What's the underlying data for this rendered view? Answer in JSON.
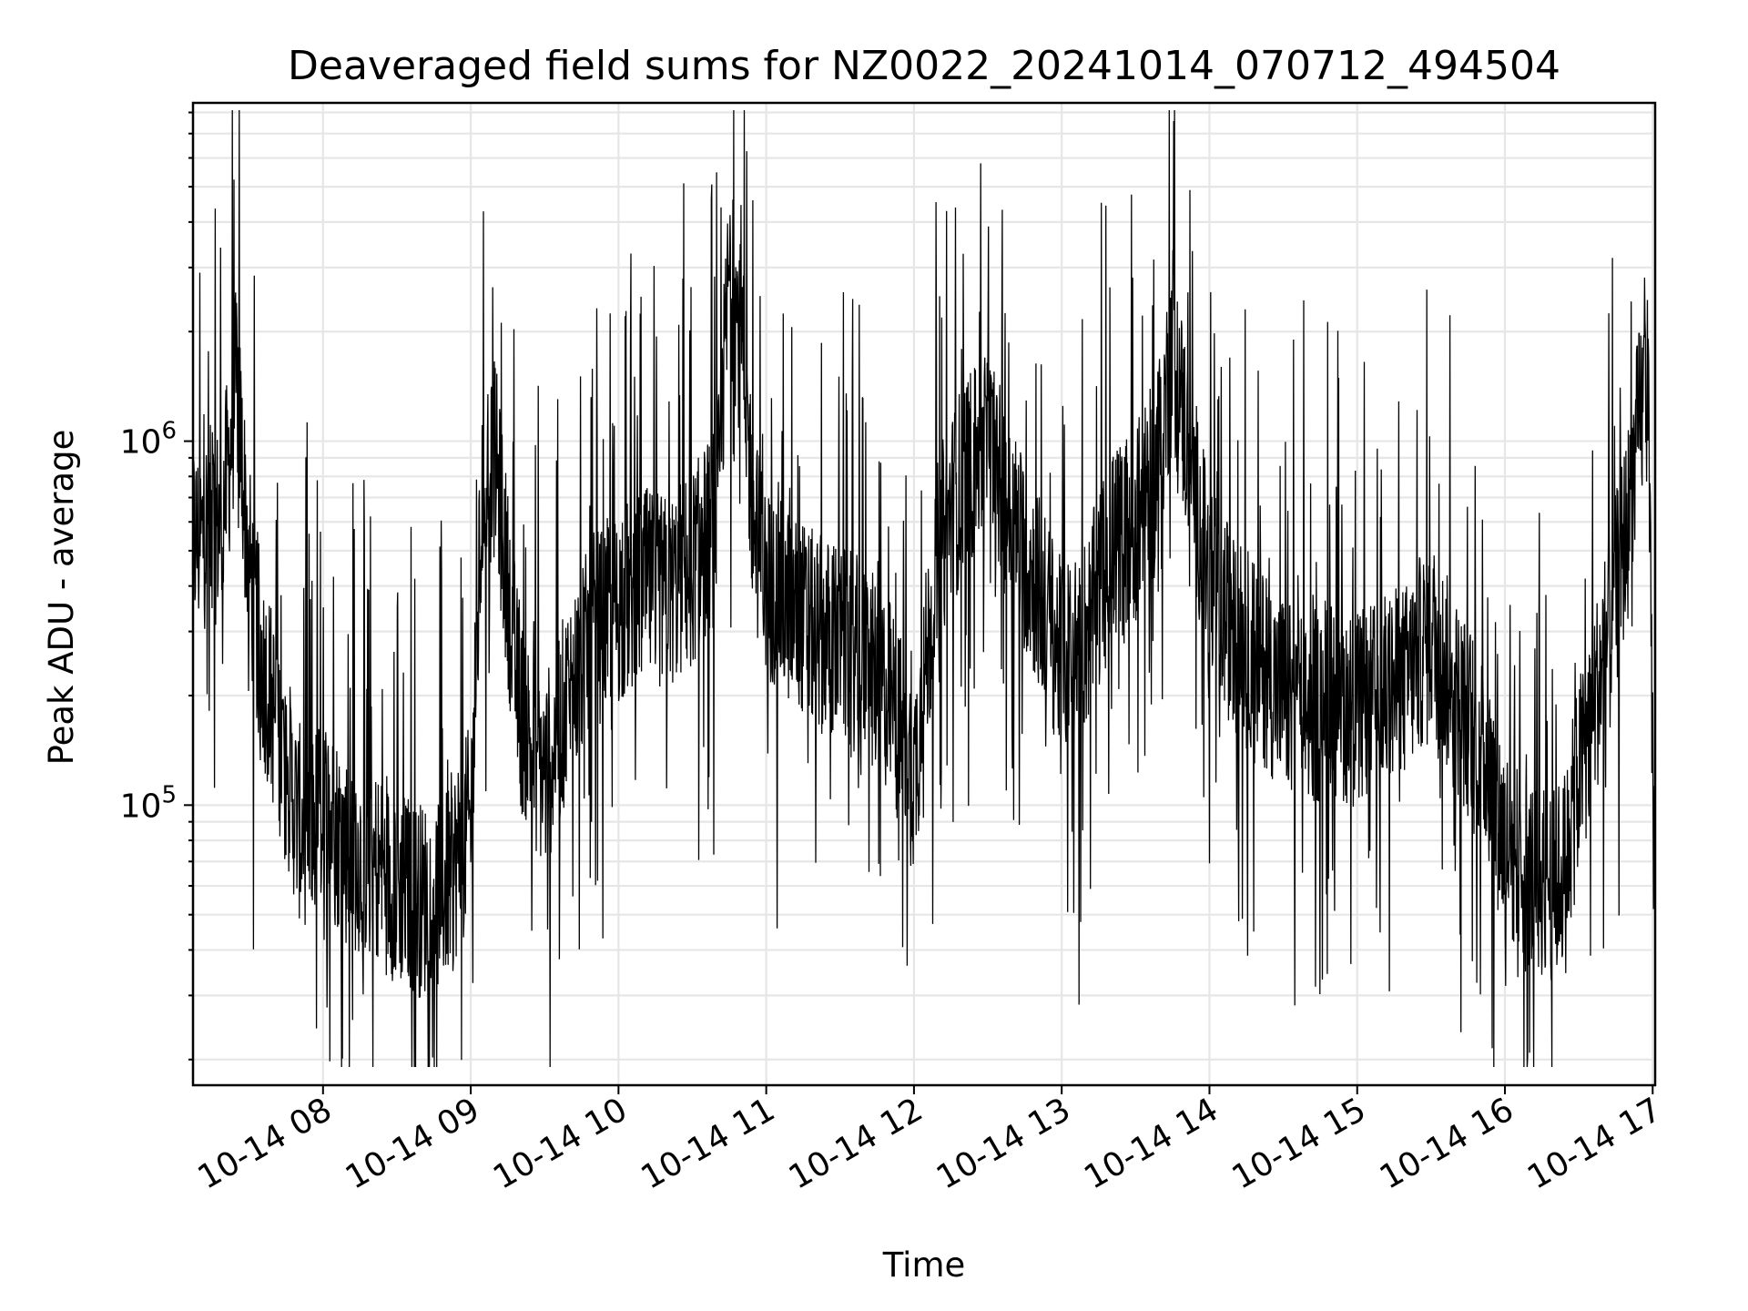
{
  "chart_data": {
    "type": "line",
    "title": "Deaveraged field sums for NZ0022_20241014_070712_494504",
    "xlabel": "Time",
    "ylabel": "Peak ADU - average",
    "yscale": "log",
    "xlim": [
      "2024-10-14 07:07:12",
      "2024-10-14 17:01:00"
    ],
    "ylim": [
      17000,
      8500000
    ],
    "grid": true,
    "legend": "none",
    "line_color": "#000000",
    "x_tick_labels": [
      "10-14 08",
      "10-14 09",
      "10-14 10",
      "10-14 11",
      "10-14 12",
      "10-14 13",
      "10-14 14",
      "10-14 15",
      "10-14 16",
      "10-14 17"
    ],
    "x_ticks": [
      "2024-10-14 08:00",
      "2024-10-14 09:00",
      "2024-10-14 10:00",
      "2024-10-14 11:00",
      "2024-10-14 12:00",
      "2024-10-14 13:00",
      "2024-10-14 14:00",
      "2024-10-14 15:00",
      "2024-10-14 16:00",
      "2024-10-14 17:00"
    ],
    "y_ticks": [
      100000,
      1000000
    ],
    "y_tick_labels": [
      {
        "base": "10",
        "exp": "5"
      },
      {
        "base": "10",
        "exp": "6"
      }
    ],
    "series": [
      {
        "x": [
          "2024-10-14 07:07",
          "2024-10-14 07:10",
          "2024-10-14 07:13",
          "2024-10-14 07:16",
          "2024-10-14 07:19",
          "2024-10-14 07:22",
          "2024-10-14 07:25",
          "2024-10-14 07:28",
          "2024-10-14 07:31",
          "2024-10-14 07:35",
          "2024-10-14 07:40",
          "2024-10-14 07:45",
          "2024-10-14 07:50",
          "2024-10-14 07:55",
          "2024-10-14 08:00",
          "2024-10-14 08:10",
          "2024-10-14 08:20",
          "2024-10-14 08:30",
          "2024-10-14 08:40",
          "2024-10-14 08:50",
          "2024-10-14 09:00",
          "2024-10-14 09:05",
          "2024-10-14 09:10",
          "2024-10-14 09:15",
          "2024-10-14 09:20",
          "2024-10-14 09:30",
          "2024-10-14 09:40",
          "2024-10-14 09:50",
          "2024-10-14 10:00",
          "2024-10-14 10:10",
          "2024-10-14 10:20",
          "2024-10-14 10:30",
          "2024-10-14 10:40",
          "2024-10-14 10:45",
          "2024-10-14 10:50",
          "2024-10-14 10:55",
          "2024-10-14 11:00",
          "2024-10-14 11:10",
          "2024-10-14 11:20",
          "2024-10-14 11:30",
          "2024-10-14 11:40",
          "2024-10-14 11:50",
          "2024-10-14 12:00",
          "2024-10-14 12:10",
          "2024-10-14 12:20",
          "2024-10-14 12:30",
          "2024-10-14 12:40",
          "2024-10-14 12:50",
          "2024-10-14 13:00",
          "2024-10-14 13:10",
          "2024-10-14 13:20",
          "2024-10-14 13:30",
          "2024-10-14 13:38",
          "2024-10-14 13:45",
          "2024-10-14 14:00",
          "2024-10-14 14:10",
          "2024-10-14 14:20",
          "2024-10-14 14:30",
          "2024-10-14 14:40",
          "2024-10-14 14:50",
          "2024-10-14 15:00",
          "2024-10-14 15:10",
          "2024-10-14 15:20",
          "2024-10-14 15:30",
          "2024-10-14 15:40",
          "2024-10-14 15:50",
          "2024-10-14 16:00",
          "2024-10-14 16:10",
          "2024-10-14 16:20",
          "2024-10-14 16:25",
          "2024-10-14 16:30",
          "2024-10-14 16:40",
          "2024-10-14 16:50",
          "2024-10-14 16:55",
          "2024-10-14 16:58",
          "2024-10-14 17:00",
          "2024-10-14 17:01"
        ],
        "values": [
          550000,
          520000,
          600000,
          580000,
          620000,
          900000,
          1500000,
          700000,
          400000,
          250000,
          180000,
          130000,
          90000,
          85000,
          100000,
          75000,
          70000,
          60000,
          55000,
          60000,
          90000,
          800000,
          900000,
          400000,
          180000,
          120000,
          200000,
          300000,
          350000,
          400000,
          380000,
          450000,
          600000,
          3000000,
          1800000,
          600000,
          400000,
          350000,
          300000,
          280000,
          250000,
          200000,
          120000,
          500000,
          800000,
          1000000,
          600000,
          400000,
          250000,
          300000,
          500000,
          600000,
          800000,
          1800000,
          400000,
          300000,
          250000,
          200000,
          180000,
          200000,
          180000,
          200000,
          220000,
          300000,
          200000,
          150000,
          80000,
          65000,
          60000,
          70000,
          120000,
          250000,
          600000,
          1200000,
          1400000,
          120000,
          60000
        ]
      }
    ]
  }
}
